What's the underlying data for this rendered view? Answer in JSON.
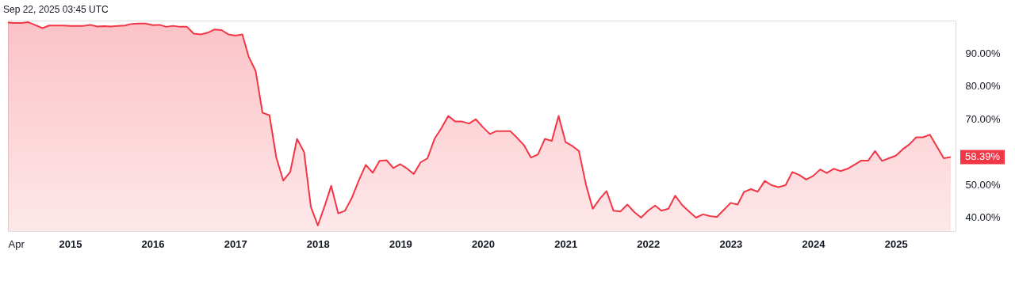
{
  "chart_data": {
    "type": "area",
    "x": [
      "2014-04",
      "2014-05",
      "2014-06",
      "2014-07",
      "2014-08",
      "2014-09",
      "2014-10",
      "2014-11",
      "2014-12",
      "2015-01",
      "2015-02",
      "2015-03",
      "2015-04",
      "2015-05",
      "2015-06",
      "2015-07",
      "2015-08",
      "2015-09",
      "2015-10",
      "2015-11",
      "2015-12",
      "2016-01",
      "2016-02",
      "2016-03",
      "2016-04",
      "2016-05",
      "2016-06",
      "2016-07",
      "2016-08",
      "2016-09",
      "2016-10",
      "2016-11",
      "2016-12",
      "2017-01",
      "2017-02",
      "2017-03",
      "2017-04",
      "2017-05",
      "2017-06",
      "2017-07",
      "2017-08",
      "2017-09",
      "2017-10",
      "2017-11",
      "2017-12",
      "2018-01",
      "2018-02",
      "2018-03",
      "2018-04",
      "2018-05",
      "2018-06",
      "2018-07",
      "2018-08",
      "2018-09",
      "2018-10",
      "2018-11",
      "2018-12",
      "2019-01",
      "2019-02",
      "2019-03",
      "2019-04",
      "2019-05",
      "2019-06",
      "2019-07",
      "2019-08",
      "2019-09",
      "2019-10",
      "2019-11",
      "2019-12",
      "2020-01",
      "2020-02",
      "2020-03",
      "2020-04",
      "2020-05",
      "2020-06",
      "2020-07",
      "2020-08",
      "2020-09",
      "2020-10",
      "2020-11",
      "2020-12",
      "2021-01",
      "2021-02",
      "2021-03",
      "2021-04",
      "2021-05",
      "2021-06",
      "2021-07",
      "2021-08",
      "2021-09",
      "2021-10",
      "2021-11",
      "2021-12",
      "2022-01",
      "2022-02",
      "2022-03",
      "2022-04",
      "2022-05",
      "2022-06",
      "2022-07",
      "2022-08",
      "2022-09",
      "2022-10",
      "2022-11",
      "2022-12",
      "2023-01",
      "2023-02",
      "2023-03",
      "2023-04",
      "2023-05",
      "2023-06",
      "2023-07",
      "2023-08",
      "2023-09",
      "2023-10",
      "2023-11",
      "2023-12",
      "2024-01",
      "2024-02",
      "2024-03",
      "2024-04",
      "2024-05",
      "2024-06",
      "2024-07",
      "2024-08",
      "2024-09",
      "2024-10",
      "2024-11",
      "2024-12",
      "2025-01",
      "2025-02",
      "2025-03",
      "2025-04",
      "2025-05",
      "2025-06",
      "2025-07",
      "2025-08",
      "2025-09"
    ],
    "series": [
      {
        "color": "#f23645",
        "values": [
          99.4,
          99.3,
          99.3,
          99.5,
          98.6,
          97.7,
          98.5,
          98.5,
          98.5,
          98.4,
          98.4,
          98.4,
          98.7,
          98.2,
          98.3,
          98.2,
          98.4,
          98.5,
          99.0,
          99.1,
          99.1,
          98.6,
          98.7,
          98.1,
          98.4,
          98.1,
          98.1,
          96.0,
          95.8,
          96.3,
          97.3,
          97.1,
          95.8,
          95.4,
          95.8,
          89.0,
          84.6,
          71.9,
          71.1,
          58.3,
          51.2,
          53.9,
          63.9,
          59.9,
          43.2,
          37.5,
          43.6,
          49.6,
          41.2,
          42.0,
          46.0,
          51.2,
          56.0,
          53.6,
          57.2,
          57.4,
          55.0,
          56.2,
          54.8,
          53.2,
          56.8,
          58.0,
          63.9,
          67.1,
          70.9,
          69.2,
          69.2,
          68.6,
          69.9,
          67.5,
          65.4,
          66.3,
          66.3,
          66.3,
          64.2,
          62.0,
          58.2,
          59.2,
          63.9,
          63.3,
          70.9,
          62.9,
          61.7,
          60.2,
          50.0,
          42.6,
          45.6,
          48.0,
          42.0,
          41.8,
          43.9,
          41.6,
          39.9,
          42.0,
          43.6,
          42.0,
          42.6,
          46.6,
          43.7,
          41.8,
          39.9,
          40.9,
          40.4,
          40.1,
          42.2,
          44.4,
          43.9,
          47.7,
          48.6,
          47.8,
          51.1,
          49.8,
          49.2,
          49.8,
          53.8,
          52.9,
          51.5,
          52.6,
          54.6,
          53.5,
          54.8,
          54.1,
          54.8,
          56.0,
          57.3,
          57.3,
          60.2,
          57.2,
          58.0,
          58.8,
          60.8,
          62.2,
          64.4,
          64.4,
          65.2,
          61.6,
          58.0,
          58.4
        ]
      }
    ],
    "xlim": [
      "2014-04-01",
      "2025-09-22"
    ],
    "xticks": [
      {
        "value": "2014-04",
        "label": "Apr"
      },
      "2015",
      "2016",
      "2017",
      "2018",
      "2019",
      "2020",
      "2021",
      "2022",
      "2023",
      "2024",
      "2025"
    ],
    "ylim": [
      35.8,
      100
    ],
    "yticks": [
      {
        "value": 40,
        "label": "40.00%"
      },
      {
        "value": 50,
        "label": "50.00%"
      },
      {
        "value": 70,
        "label": "70.00%"
      },
      {
        "value": 80,
        "label": "80.00%"
      },
      {
        "value": 90,
        "label": "90.00%"
      }
    ],
    "grid": false,
    "annotations": [
      "Sep 22, 2025 03:45 UTC",
      {
        "text": "58.39%",
        "x": "2025-09",
        "y": 58.39
      }
    ]
  }
}
